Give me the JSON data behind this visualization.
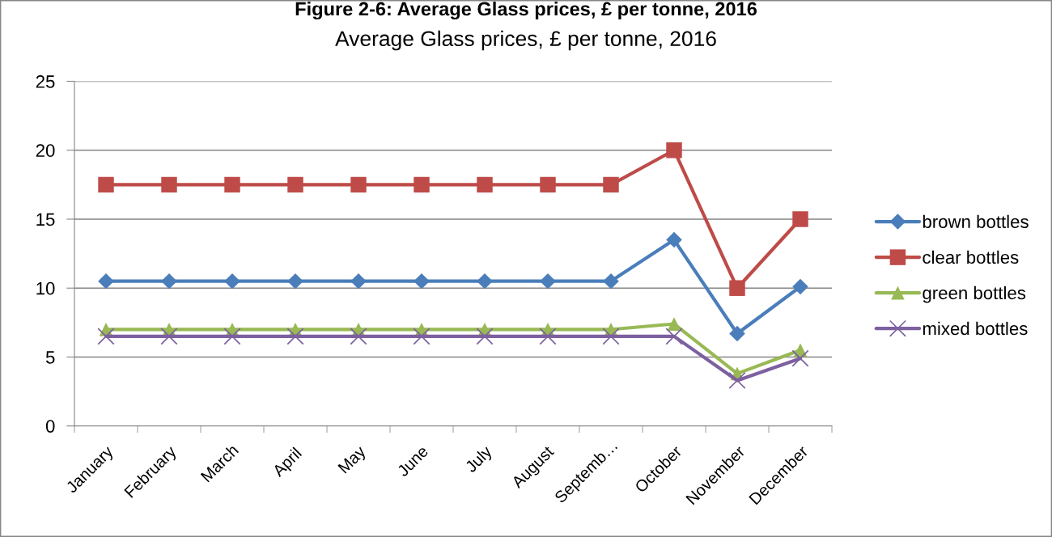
{
  "chart_data": {
    "type": "line",
    "title": "Figure 2-6: Average Glass prices, £ per tonne, 2016",
    "subtitle": "Average Glass prices, £ per tonne, 2016",
    "categories": [
      "January",
      "February",
      "March",
      "April",
      "May",
      "June",
      "July",
      "August",
      "Septemb…",
      "October",
      "November",
      "December"
    ],
    "series": [
      {
        "name": "brown bottles",
        "color": "#4a7ebb",
        "marker": "diamond",
        "values": [
          10.5,
          10.5,
          10.5,
          10.5,
          10.5,
          10.5,
          10.5,
          10.5,
          10.5,
          13.5,
          6.7,
          10.1
        ]
      },
      {
        "name": "clear bottles",
        "color": "#be4b48",
        "marker": "square",
        "values": [
          17.5,
          17.5,
          17.5,
          17.5,
          17.5,
          17.5,
          17.5,
          17.5,
          17.5,
          20,
          10,
          15
        ]
      },
      {
        "name": "green bottles",
        "color": "#98b954",
        "marker": "triangle",
        "values": [
          7,
          7,
          7,
          7,
          7,
          7,
          7,
          7,
          7,
          7.4,
          3.8,
          5.5
        ]
      },
      {
        "name": "mixed bottles",
        "color": "#7d60a0",
        "marker": "cross",
        "values": [
          6.5,
          6.5,
          6.5,
          6.5,
          6.5,
          6.5,
          6.5,
          6.5,
          6.5,
          6.5,
          3.3,
          4.9
        ]
      }
    ],
    "ylim": [
      0,
      25
    ],
    "yticks": [
      0,
      5,
      10,
      15,
      20,
      25
    ],
    "grid": "y",
    "legend": "right",
    "line_style": "solid"
  }
}
